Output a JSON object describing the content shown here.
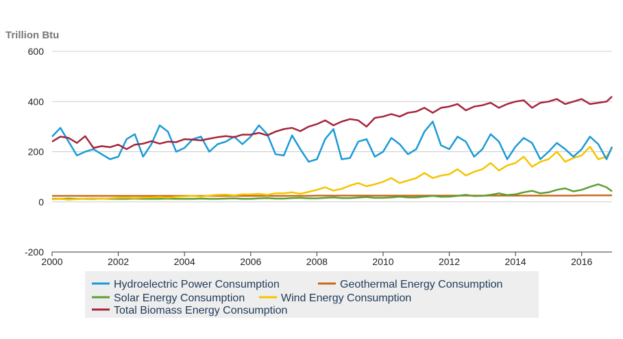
{
  "chart_data": {
    "type": "line",
    "ylabel": "Trillion Btu",
    "ylim": [
      -200,
      600
    ],
    "yticks": [
      -200,
      0,
      200,
      400,
      600
    ],
    "xlim": [
      "2000-01",
      "2016-12"
    ],
    "xticks": [
      "2000",
      "2002",
      "2004",
      "2006",
      "2008",
      "2010",
      "2012",
      "2014",
      "2016"
    ],
    "grid": true,
    "legend_position": "bottom",
    "x": [
      "2000-01",
      "2000-04",
      "2000-07",
      "2000-10",
      "2001-01",
      "2001-04",
      "2001-07",
      "2001-10",
      "2002-01",
      "2002-04",
      "2002-07",
      "2002-10",
      "2003-01",
      "2003-04",
      "2003-07",
      "2003-10",
      "2004-01",
      "2004-04",
      "2004-07",
      "2004-10",
      "2005-01",
      "2005-04",
      "2005-07",
      "2005-10",
      "2006-01",
      "2006-04",
      "2006-07",
      "2006-10",
      "2007-01",
      "2007-04",
      "2007-07",
      "2007-10",
      "2008-01",
      "2008-04",
      "2008-07",
      "2008-10",
      "2009-01",
      "2009-04",
      "2009-07",
      "2009-10",
      "2010-01",
      "2010-04",
      "2010-07",
      "2010-10",
      "2011-01",
      "2011-04",
      "2011-07",
      "2011-10",
      "2012-01",
      "2012-04",
      "2012-07",
      "2012-10",
      "2013-01",
      "2013-04",
      "2013-07",
      "2013-10",
      "2014-01",
      "2014-04",
      "2014-07",
      "2014-10",
      "2015-01",
      "2015-04",
      "2015-07",
      "2015-10",
      "2016-01",
      "2016-04",
      "2016-07",
      "2016-10",
      "2016-12"
    ],
    "series": [
      {
        "name": "Hydroelectric Power Consumption",
        "color": "#1a9ad6",
        "values": [
          260,
          295,
          240,
          185,
          200,
          210,
          190,
          170,
          180,
          250,
          270,
          180,
          230,
          305,
          280,
          200,
          215,
          250,
          260,
          200,
          230,
          240,
          260,
          230,
          260,
          305,
          270,
          190,
          185,
          265,
          210,
          160,
          170,
          250,
          290,
          170,
          175,
          240,
          250,
          180,
          200,
          255,
          230,
          190,
          210,
          280,
          320,
          225,
          210,
          260,
          240,
          180,
          210,
          270,
          240,
          170,
          220,
          255,
          235,
          170,
          200,
          235,
          210,
          180,
          210,
          260,
          230,
          170,
          220
        ]
      },
      {
        "name": "Geothermal Energy Consumption",
        "color": "#c8691c",
        "values": [
          24,
          24,
          24,
          24,
          24,
          24,
          24,
          24,
          24,
          24,
          24,
          24,
          24,
          24,
          24,
          24,
          24,
          24,
          24,
          24,
          24,
          24,
          24,
          24,
          24,
          24,
          24,
          24,
          24,
          24,
          24,
          24,
          25,
          25,
          25,
          25,
          25,
          25,
          25,
          25,
          25,
          25,
          25,
          25,
          25,
          25,
          25,
          25,
          25,
          25,
          25,
          25,
          25,
          25,
          25,
          25,
          25,
          25,
          25,
          25,
          25,
          25,
          25,
          25,
          26,
          26,
          26,
          26,
          26
        ]
      },
      {
        "name": "Solar Energy Consumption",
        "color": "#5c9e31",
        "values": [
          12,
          12,
          13,
          12,
          12,
          12,
          13,
          12,
          12,
          12,
          13,
          12,
          12,
          12,
          13,
          12,
          12,
          12,
          13,
          12,
          12,
          13,
          14,
          12,
          12,
          14,
          15,
          13,
          13,
          15,
          16,
          14,
          14,
          16,
          18,
          15,
          15,
          17,
          19,
          16,
          16,
          18,
          21,
          18,
          18,
          21,
          24,
          20,
          21,
          24,
          28,
          23,
          24,
          28,
          34,
          27,
          30,
          38,
          44,
          34,
          38,
          48,
          54,
          42,
          48,
          60,
          70,
          58,
          42
        ]
      },
      {
        "name": "Wind Energy Consumption",
        "color": "#f5c400",
        "values": [
          10,
          12,
          9,
          11,
          13,
          14,
          12,
          14,
          16,
          17,
          15,
          17,
          18,
          19,
          17,
          20,
          22,
          24,
          21,
          25,
          28,
          29,
          26,
          30,
          30,
          32,
          28,
          34,
          34,
          38,
          32,
          40,
          48,
          58,
          45,
          52,
          65,
          75,
          62,
          70,
          80,
          95,
          75,
          85,
          95,
          115,
          95,
          105,
          110,
          130,
          105,
          120,
          130,
          155,
          125,
          145,
          155,
          180,
          140,
          160,
          170,
          200,
          160,
          175,
          185,
          220,
          170,
          180,
          215
        ]
      },
      {
        "name": "Total Biomass Energy Consumption",
        "color": "#a5243a",
        "values": [
          240,
          260,
          255,
          235,
          262,
          215,
          222,
          218,
          228,
          210,
          228,
          232,
          242,
          232,
          240,
          238,
          250,
          248,
          245,
          252,
          258,
          262,
          258,
          268,
          268,
          275,
          265,
          280,
          290,
          295,
          282,
          300,
          310,
          325,
          305,
          320,
          330,
          325,
          300,
          335,
          340,
          350,
          340,
          355,
          360,
          375,
          355,
          375,
          380,
          390,
          365,
          380,
          385,
          395,
          375,
          390,
          400,
          405,
          375,
          395,
          400,
          410,
          390,
          400,
          410,
          390,
          395,
          400,
          420
        ]
      }
    ]
  }
}
